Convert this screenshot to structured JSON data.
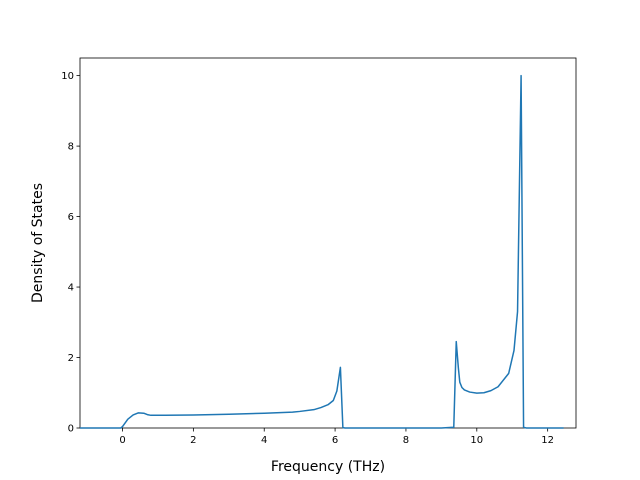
{
  "chart_data": {
    "type": "line",
    "title": "",
    "xlabel": "Frequency (THz)",
    "ylabel": "Density of States",
    "xlim": [
      -1.2,
      12.8
    ],
    "ylim": [
      0,
      10.5
    ],
    "xticks": [
      0,
      2,
      4,
      6,
      8,
      10,
      12
    ],
    "yticks": [
      0,
      2,
      4,
      6,
      8,
      10
    ],
    "grid": false,
    "line_color": "#1f77b4",
    "series": [
      {
        "x": [
          -1.2,
          -0.05,
          0.0,
          0.15,
          0.3,
          0.45,
          0.6,
          0.7,
          0.8,
          1.2,
          2.0,
          3.0,
          4.0,
          4.8,
          5.0,
          5.4,
          5.6,
          5.8,
          5.95,
          6.05,
          6.15,
          6.22,
          6.28,
          7.0,
          8.0,
          9.0,
          9.35,
          9.42,
          9.48,
          9.52,
          9.58,
          9.65,
          9.8,
          10.0,
          10.2,
          10.4,
          10.6,
          10.9,
          11.05,
          11.15,
          11.25,
          11.32,
          11.4,
          12.0,
          12.45
        ],
        "y": [
          0.0,
          0.0,
          0.04,
          0.25,
          0.37,
          0.43,
          0.42,
          0.38,
          0.36,
          0.36,
          0.37,
          0.39,
          0.42,
          0.45,
          0.47,
          0.52,
          0.58,
          0.66,
          0.78,
          1.05,
          1.72,
          0.01,
          0.0,
          0.0,
          0.0,
          0.0,
          0.02,
          2.45,
          1.7,
          1.3,
          1.15,
          1.08,
          1.02,
          0.99,
          1.0,
          1.06,
          1.17,
          1.55,
          2.2,
          3.3,
          10.0,
          0.02,
          0.0,
          0.0,
          0.0
        ]
      }
    ]
  }
}
